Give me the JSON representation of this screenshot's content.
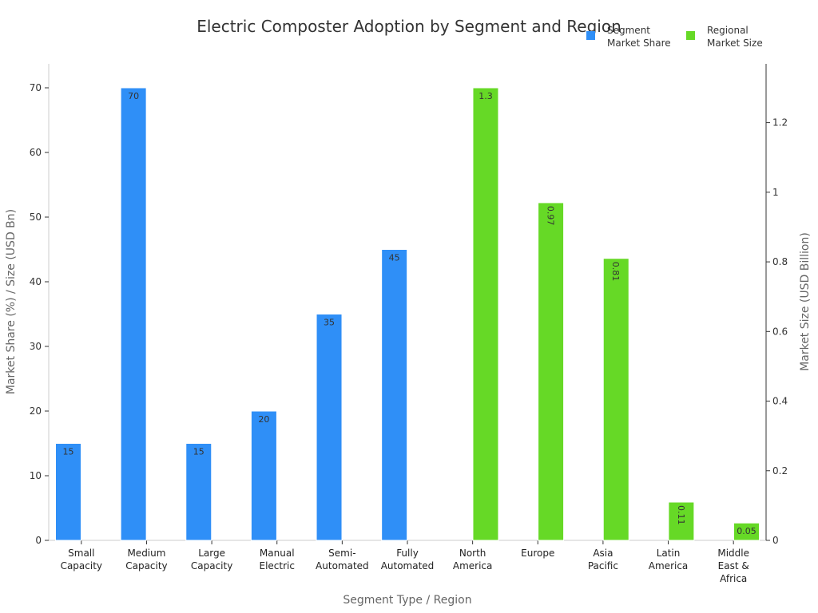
{
  "chart_data": {
    "type": "bar",
    "title": "Electric Composter Adoption by Segment and Region",
    "xlabel": "Segment Type / Region",
    "ylabel_left": "Market Share (%) / Size (USD Bn)",
    "ylabel_right": "Market Size (USD Billion)",
    "ylim_left": [
      0,
      70
    ],
    "ylim_right": [
      0,
      1.3
    ],
    "yticks_left": [
      "0",
      "10",
      "20",
      "30",
      "40",
      "50",
      "60",
      "70"
    ],
    "yticks_right": [
      "0",
      "0.2",
      "0.4",
      "0.6",
      "0.8",
      "1",
      "1.2"
    ],
    "grid": false,
    "legend_position": "top-right",
    "categories": [
      [
        "Small",
        "Capacity"
      ],
      [
        "Medium",
        "Capacity"
      ],
      [
        "Large",
        "Capacity"
      ],
      [
        "Manual",
        "Electric"
      ],
      [
        "Semi-",
        "Automated"
      ],
      [
        "Fully",
        "Automated"
      ],
      [
        "North",
        "America"
      ],
      [
        "Europe"
      ],
      [
        "Asia",
        "Pacific"
      ],
      [
        "Latin",
        "America"
      ],
      [
        "Middle",
        "East &",
        "Africa"
      ]
    ],
    "series": [
      {
        "name": "Segment Market Share",
        "legend_lines": [
          "Segment",
          "Market Share"
        ],
        "axis": "left",
        "color": "#2f8ff7",
        "values": [
          15,
          70,
          15,
          20,
          35,
          45,
          null,
          null,
          null,
          null,
          null
        ],
        "labels": [
          "15",
          "70",
          "15",
          "20",
          "35",
          "45",
          null,
          null,
          null,
          null,
          null
        ]
      },
      {
        "name": "Regional Market Size",
        "legend_lines": [
          "Regional",
          "Market Size"
        ],
        "axis": "right",
        "color": "#66d926",
        "values": [
          null,
          null,
          null,
          null,
          null,
          null,
          1.3,
          0.97,
          0.81,
          0.11,
          0.05
        ],
        "labels": [
          null,
          null,
          null,
          null,
          null,
          null,
          "1.3",
          "0.97",
          "0.81",
          "0.11",
          "0.05"
        ],
        "label_rotated": [
          false,
          false,
          false,
          false,
          false,
          false,
          false,
          true,
          true,
          true,
          false
        ]
      }
    ]
  }
}
